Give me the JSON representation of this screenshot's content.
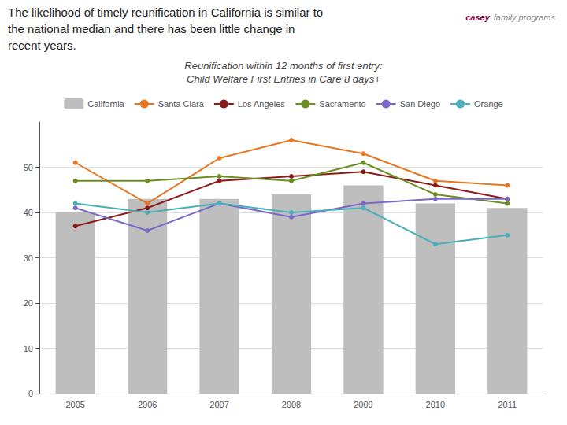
{
  "chart_data": {
    "type": "bar",
    "title": "Reunification within 12 months of first entry:",
    "subtitle": "Child Welfare First Entries in Care 8 days+",
    "annotations": [
      {
        "text": "The likelihood of timely reunification in California is similar to",
        "color": "#222222"
      },
      {
        "text": "the national median and there has been little change in",
        "color": "#222222"
      },
      {
        "text": "recent years.",
        "color": "#222222"
      },
      {
        "text": "casey",
        "color": "#8B0046"
      },
      {
        "text": "family programs",
        "color": "#888888"
      }
    ],
    "categories": [
      "2005",
      "2006",
      "2007",
      "2008",
      "2009",
      "2010",
      "2011"
    ],
    "series": [
      {
        "name": "California",
        "type": "bar",
        "color": "#BEBEBE",
        "values": [
          40,
          43,
          43,
          44,
          46,
          42,
          41
        ]
      },
      {
        "name": "Santa Clara",
        "type": "line",
        "marker": "circle",
        "color": "#E87722",
        "values": [
          51,
          42,
          52,
          56,
          53,
          47,
          46
        ]
      },
      {
        "name": "Los Angeles",
        "type": "line",
        "marker": "circle",
        "color": "#8B1A1A",
        "values": [
          37,
          41,
          47,
          48,
          49,
          46,
          43
        ]
      },
      {
        "name": "Sacramento",
        "type": "line",
        "marker": "circle",
        "color": "#6B8E23",
        "values": [
          47,
          47,
          48,
          47,
          51,
          44,
          42
        ]
      },
      {
        "name": "San Diego",
        "type": "line",
        "marker": "circle",
        "color": "#7B68C8",
        "values": [
          41,
          36,
          42,
          39,
          42,
          43,
          43
        ]
      },
      {
        "name": "Orange",
        "type": "line",
        "marker": "circle",
        "color": "#4AAFB8",
        "values": [
          42,
          40,
          42,
          40,
          41,
          33,
          35
        ]
      }
    ],
    "ylim": [
      0,
      60
    ],
    "yticks": [
      0,
      10,
      20,
      30,
      40,
      50
    ],
    "grid": true,
    "legend": "top"
  }
}
